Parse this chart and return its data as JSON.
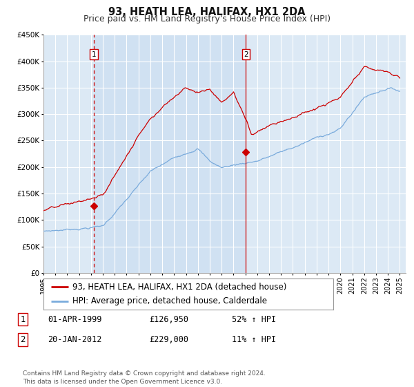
{
  "title": "93, HEATH LEA, HALIFAX, HX1 2DA",
  "subtitle": "Price paid vs. HM Land Registry's House Price Index (HPI)",
  "ylim": [
    0,
    450000
  ],
  "yticks": [
    0,
    50000,
    100000,
    150000,
    200000,
    250000,
    300000,
    350000,
    400000,
    450000
  ],
  "ytick_labels": [
    "£0",
    "£50K",
    "£100K",
    "£150K",
    "£200K",
    "£250K",
    "£300K",
    "£350K",
    "£400K",
    "£450K"
  ],
  "xlim_start": 1995.0,
  "xlim_end": 2025.5,
  "xticks": [
    1995,
    1996,
    1997,
    1998,
    1999,
    2000,
    2001,
    2002,
    2003,
    2004,
    2005,
    2006,
    2007,
    2008,
    2009,
    2010,
    2011,
    2012,
    2013,
    2014,
    2015,
    2016,
    2017,
    2018,
    2019,
    2020,
    2021,
    2022,
    2023,
    2024,
    2025
  ],
  "fig_bg_color": "#ffffff",
  "plot_bg_color": "#dce9f5",
  "grid_color": "#ffffff",
  "shade_color": "#c8dcf0",
  "red_color": "#cc0000",
  "blue_color": "#7aabdc",
  "sale1_x": 1999.25,
  "sale1_y": 126950,
  "sale2_x": 2012.05,
  "sale2_y": 229000,
  "legend_line1": "93, HEATH LEA, HALIFAX, HX1 2DA (detached house)",
  "legend_line2": "HPI: Average price, detached house, Calderdale",
  "table_row1": [
    "1",
    "01-APR-1999",
    "£126,950",
    "52% ↑ HPI"
  ],
  "table_row2": [
    "2",
    "20-JAN-2012",
    "£229,000",
    "11% ↑ HPI"
  ],
  "footer": "Contains HM Land Registry data © Crown copyright and database right 2024.\nThis data is licensed under the Open Government Licence v3.0.",
  "title_fontsize": 10.5,
  "subtitle_fontsize": 9,
  "tick_fontsize": 7.5,
  "legend_fontsize": 8.5,
  "table_fontsize": 8.5,
  "footer_fontsize": 6.5
}
